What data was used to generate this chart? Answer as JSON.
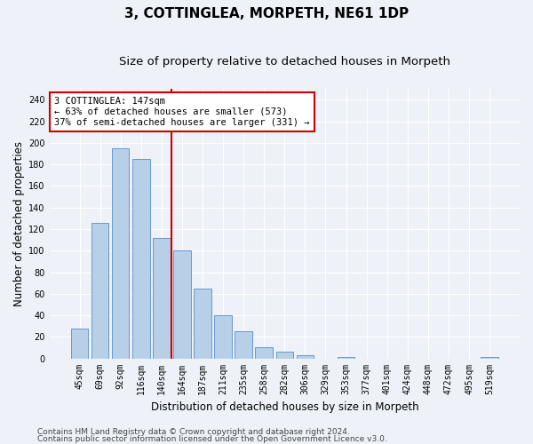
{
  "title": "3, COTTINGLEA, MORPETH, NE61 1DP",
  "subtitle": "Size of property relative to detached houses in Morpeth",
  "xlabel": "Distribution of detached houses by size in Morpeth",
  "ylabel": "Number of detached properties",
  "categories": [
    "45sqm",
    "69sqm",
    "92sqm",
    "116sqm",
    "140sqm",
    "164sqm",
    "187sqm",
    "211sqm",
    "235sqm",
    "258sqm",
    "282sqm",
    "306sqm",
    "329sqm",
    "353sqm",
    "377sqm",
    "401sqm",
    "424sqm",
    "448sqm",
    "472sqm",
    "495sqm",
    "519sqm"
  ],
  "bar_vals": [
    28,
    126,
    195,
    185,
    112,
    100,
    65,
    40,
    25,
    10,
    6,
    3,
    0,
    1,
    0,
    0,
    0,
    0,
    0,
    0,
    1
  ],
  "bar_color": "#b8cfe8",
  "bar_edge_color": "#6699cc",
  "vline_x_idx": 4.5,
  "vline_color": "#cc0000",
  "annotation_text": "3 COTTINGLEA: 147sqm\n← 63% of detached houses are smaller (573)\n37% of semi-detached houses are larger (331) →",
  "annotation_box_color": "#ffffff",
  "annotation_box_edge": "#cc0000",
  "footer1": "Contains HM Land Registry data © Crown copyright and database right 2024.",
  "footer2": "Contains public sector information licensed under the Open Government Licence v3.0.",
  "ylim": [
    0,
    250
  ],
  "yticks": [
    0,
    20,
    40,
    60,
    80,
    100,
    120,
    140,
    160,
    180,
    200,
    220,
    240
  ],
  "bg_color": "#eef2f8",
  "title_fontsize": 11,
  "subtitle_fontsize": 9.5,
  "ylabel_fontsize": 8.5,
  "xlabel_fontsize": 8.5,
  "tick_fontsize": 7,
  "annotation_fontsize": 7.5,
  "footer_fontsize": 6.5
}
